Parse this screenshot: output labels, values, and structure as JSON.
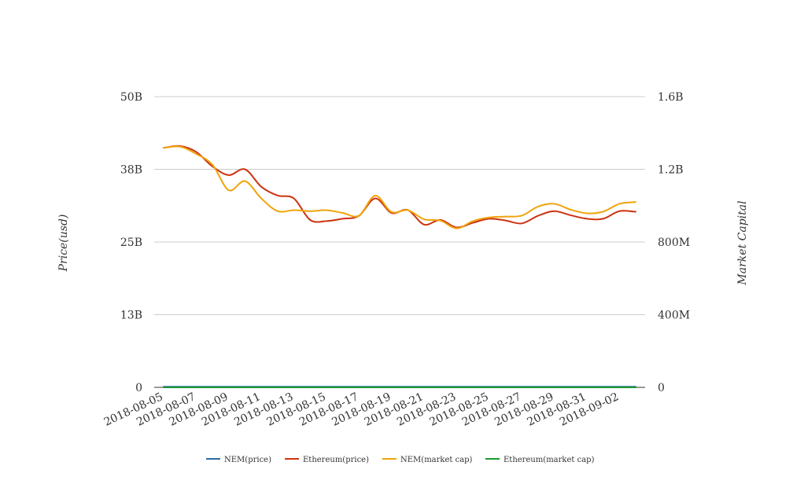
{
  "chart_data": {
    "type": "line",
    "ylabel_left": "Price(usd)",
    "ylabel_right": "Market Capital",
    "left_axis": {
      "ticks": [
        "0",
        "13B",
        "25B",
        "38B",
        "50B"
      ],
      "tick_values": [
        0,
        12.5,
        25,
        37.5,
        50
      ],
      "ylim": [
        0,
        50
      ]
    },
    "right_axis": {
      "ticks": [
        "0",
        "400M",
        "800M",
        "1.2B",
        "1.6B"
      ],
      "tick_values": [
        0,
        400,
        800,
        1200,
        1600
      ],
      "ylim": [
        0,
        1600
      ]
    },
    "x_ticks": [
      "2018-08-05",
      "2018-08-07",
      "2018-08-09",
      "2018-08-11",
      "2018-08-13",
      "2018-08-15",
      "2018-08-17",
      "2018-08-19",
      "2018-08-21",
      "2018-08-23",
      "2018-08-25",
      "2018-08-27",
      "2018-08-29",
      "2018-08-31",
      "2018-09-02"
    ],
    "x": [
      "2018-08-05",
      "2018-08-06",
      "2018-08-07",
      "2018-08-08",
      "2018-08-09",
      "2018-08-10",
      "2018-08-11",
      "2018-08-12",
      "2018-08-13",
      "2018-08-14",
      "2018-08-15",
      "2018-08-16",
      "2018-08-17",
      "2018-08-18",
      "2018-08-19",
      "2018-08-20",
      "2018-08-21",
      "2018-08-22",
      "2018-08-23",
      "2018-08-24",
      "2018-08-25",
      "2018-08-26",
      "2018-08-27",
      "2018-08-28",
      "2018-08-29",
      "2018-08-30",
      "2018-08-31",
      "2018-09-01",
      "2018-09-02",
      "2018-09-03"
    ],
    "grid": true,
    "legend_position": "bottom",
    "series": [
      {
        "name": "NEM(price)",
        "axis": "left",
        "color": "#2b6aa3",
        "values": [
          0.1,
          0.1,
          0.1,
          0.1,
          0.1,
          0.1,
          0.1,
          0.1,
          0.1,
          0.1,
          0.1,
          0.1,
          0.1,
          0.1,
          0.1,
          0.1,
          0.1,
          0.1,
          0.1,
          0.1,
          0.1,
          0.1,
          0.1,
          0.1,
          0.1,
          0.1,
          0.1,
          0.1,
          0.1,
          0.1
        ]
      },
      {
        "name": "Ethereum(price)",
        "axis": "left",
        "color": "#cc3311",
        "values": [
          41.2,
          41.5,
          40.5,
          38.0,
          36.5,
          37.5,
          34.5,
          33.0,
          32.5,
          28.8,
          28.6,
          29.0,
          29.5,
          32.5,
          30.0,
          30.5,
          28.0,
          28.8,
          27.5,
          28.3,
          29.0,
          28.7,
          28.2,
          29.5,
          30.3,
          29.6,
          29.0,
          29.0,
          30.3,
          30.2
        ]
      },
      {
        "name": "NEM(market cap)",
        "axis": "right",
        "color": "#f0a30a",
        "values": [
          1318,
          1325,
          1285,
          1225,
          1085,
          1135,
          1040,
          970,
          975,
          970,
          975,
          960,
          945,
          1055,
          965,
          975,
          925,
          918,
          875,
          915,
          935,
          940,
          945,
          995,
          1010,
          978,
          958,
          967,
          1010,
          1020
        ]
      },
      {
        "name": "Ethereum(market cap)",
        "axis": "right",
        "color": "#1a9a30",
        "values": [
          0.1,
          0.1,
          0.1,
          0.1,
          0.1,
          0.1,
          0.1,
          0.1,
          0.1,
          0.1,
          0.1,
          0.1,
          0.1,
          0.1,
          0.1,
          0.1,
          0.1,
          0.1,
          0.1,
          0.1,
          0.1,
          0.1,
          0.1,
          0.1,
          0.1,
          0.1,
          0.1,
          0.1,
          0.1,
          0.1
        ]
      }
    ],
    "draw_order": [
      0,
      3,
      1,
      2
    ]
  }
}
